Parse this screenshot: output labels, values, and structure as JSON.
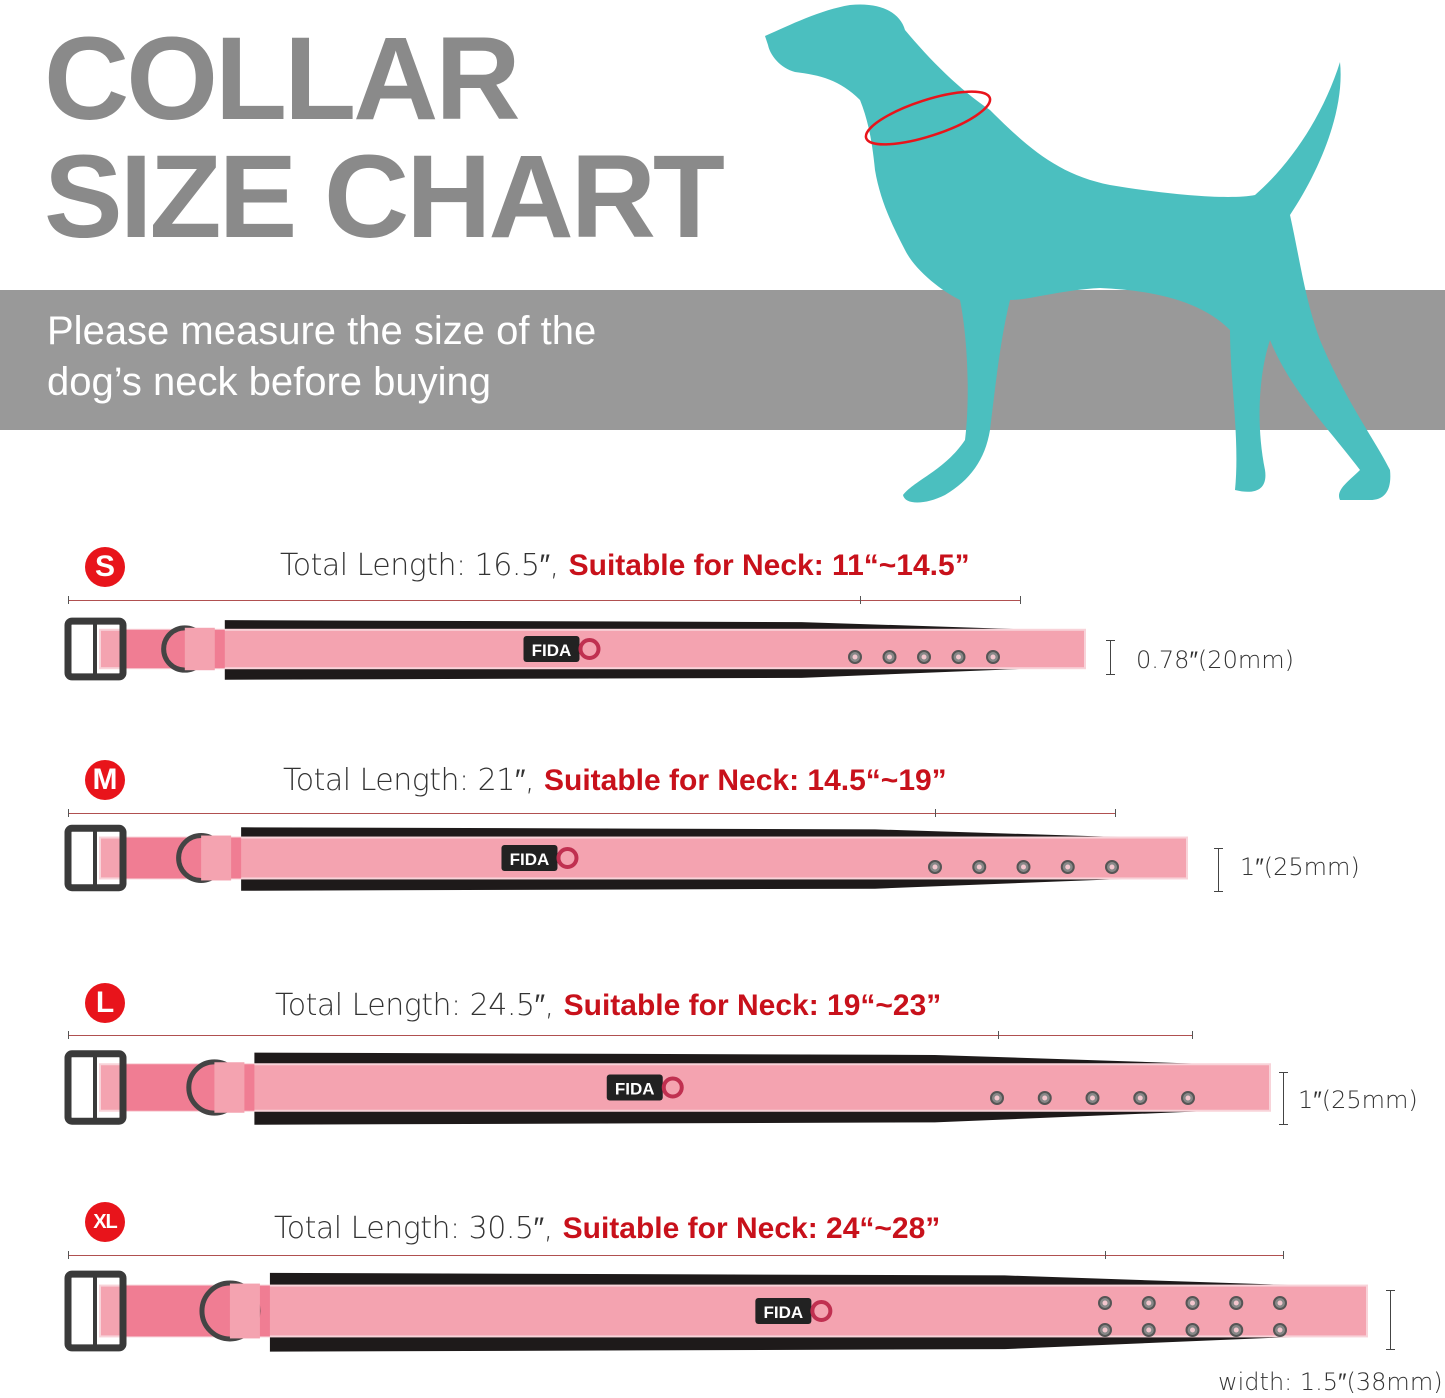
{
  "header": {
    "title_line1": "COLLAR",
    "title_line2": "SIZE CHART",
    "instruction_line1": "Please measure the size of the",
    "instruction_line2": "dog’s neck before buying"
  },
  "colors": {
    "title_gray": "#8a8a8a",
    "band_gray": "#999999",
    "dog_teal": "#4bbfbf",
    "accent_red": "#c8111b",
    "collar_pink": "#f4a3b0"
  },
  "brand_tag": "FIDA",
  "sizes": [
    {
      "badge": "S",
      "total_length": "Total Length: 16.5″,",
      "neck": "Suitable for Neck: 11“~14.5”",
      "width": "0.78″(20mm)"
    },
    {
      "badge": "M",
      "total_length": "Total Length: 21″,",
      "neck": "Suitable for Neck: 14.5“~19”",
      "width": "1″(25mm)"
    },
    {
      "badge": "L",
      "total_length": "Total Length: 24.5″,",
      "neck": "Suitable for Neck: 19“~23”",
      "width": "1″(25mm)"
    },
    {
      "badge": "XL",
      "total_length": "Total Length: 30.5″,",
      "neck": "Suitable for Neck: 24“~28”",
      "width": "width: 1.5″(38mm)"
    }
  ]
}
